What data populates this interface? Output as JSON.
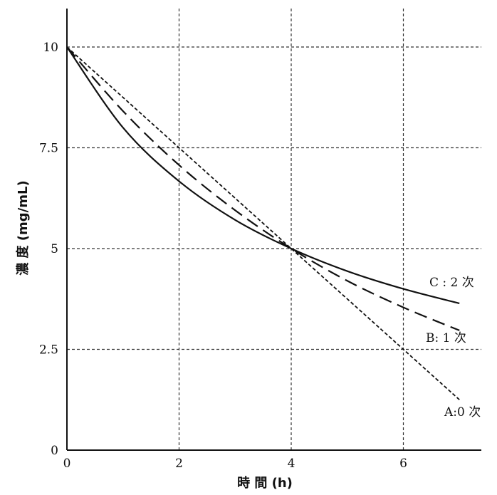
{
  "chart_data": {
    "type": "line",
    "xlabel": "時 間 (h)",
    "ylabel": "濃 度 (mg/mL)",
    "xlim": [
      0,
      7.3
    ],
    "ylim": [
      0,
      10
    ],
    "x_ticks": [
      0,
      2,
      4,
      6
    ],
    "x_tick_labels": [
      "0",
      "2",
      "4",
      "6"
    ],
    "y_ticks": [
      0,
      2.5,
      5,
      7.5,
      10
    ],
    "y_tick_labels": [
      "0",
      "2.5",
      "5",
      "7.5",
      "10"
    ],
    "grid": true,
    "series": [
      {
        "name": "A:0 次",
        "line_style": "dotted",
        "x": [
          0,
          1,
          2,
          3,
          4,
          5,
          6,
          7
        ],
        "y": [
          10,
          8.75,
          7.5,
          6.25,
          5,
          3.75,
          2.5,
          1.25
        ]
      },
      {
        "name": "B: 1 次",
        "line_style": "dashed",
        "x": [
          0,
          1,
          2,
          3,
          4,
          5,
          6,
          7
        ],
        "y": [
          10,
          8.41,
          7.07,
          5.95,
          5,
          4.2,
          3.54,
          2.97
        ]
      },
      {
        "name": "C : 2 次",
        "line_style": "solid",
        "x": [
          0,
          1,
          2,
          3,
          4,
          5,
          6,
          7
        ],
        "y": [
          10,
          8.0,
          6.67,
          5.71,
          5,
          4.44,
          4.0,
          3.64
        ]
      }
    ]
  }
}
